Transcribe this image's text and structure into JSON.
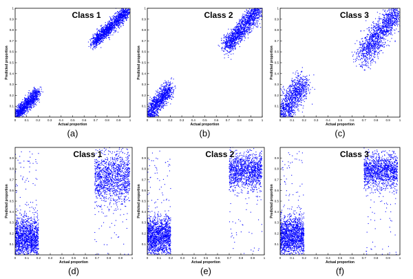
{
  "chart_data": [
    {
      "type": "scatter",
      "panel_label": "(a)",
      "title": "Class 1",
      "xlabel": "Actual proportion",
      "ylabel": "Predicted proportion",
      "xlim": [
        0,
        1
      ],
      "ylim": [
        0,
        1
      ],
      "grid": false,
      "x_ticks": [
        "0",
        "0.1",
        "0.2",
        "0.3",
        "0.4",
        "0.5",
        "0.6",
        "0.7",
        "0.8",
        "0.9",
        "1"
      ],
      "y_ticks": [
        "0.1",
        "0.2",
        "0.3",
        "0.4",
        "0.5",
        "0.6",
        "0.7",
        "0.8",
        "0.9",
        "1"
      ],
      "point_color": "#0000ff",
      "clusters": [
        {
          "x_range": [
            0,
            0.2
          ],
          "y_range": [
            0,
            0.23
          ],
          "trend": "diagonal",
          "spread": 0.03
        },
        {
          "x_range": [
            0.68,
            0.98
          ],
          "y_range": [
            0.68,
            0.98
          ],
          "trend": "diagonal",
          "spread": 0.03
        }
      ]
    },
    {
      "type": "scatter",
      "panel_label": "(b)",
      "title": "Class 2",
      "xlabel": "Actual proportion",
      "ylabel": "Predicted proportion",
      "xlim": [
        0,
        1
      ],
      "ylim": [
        0,
        1
      ],
      "grid": false,
      "x_ticks": [
        "0",
        "0.1",
        "0.2",
        "0.3",
        "0.4",
        "0.5",
        "0.6",
        "0.7",
        "0.8",
        "0.9",
        "1"
      ],
      "y_ticks": [
        "0.1",
        "0.2",
        "0.3",
        "0.4",
        "0.5",
        "0.6",
        "0.7",
        "0.8",
        "0.9",
        "1"
      ],
      "point_color": "#0000ff",
      "clusters": [
        {
          "x_range": [
            0,
            0.2
          ],
          "y_range": [
            0,
            0.28
          ],
          "trend": "diagonal",
          "spread": 0.04
        },
        {
          "x_range": [
            0.68,
            0.98
          ],
          "y_range": [
            0.64,
            1.0
          ],
          "trend": "diagonal",
          "spread": 0.045
        }
      ]
    },
    {
      "type": "scatter",
      "panel_label": "(c)",
      "title": "Class 3",
      "xlabel": "Actual proportion",
      "ylabel": "Predicted proportion",
      "xlim": [
        0,
        1
      ],
      "ylim": [
        0,
        1
      ],
      "grid": false,
      "x_ticks": [
        "0",
        "0.1",
        "0.2",
        "0.3",
        "0.4",
        "0.5",
        "0.6",
        "0.7",
        "0.8",
        "0.9",
        "1"
      ],
      "y_ticks": [
        "0.1",
        "0.2",
        "0.3",
        "0.4",
        "0.5",
        "0.6",
        "0.7",
        "0.8",
        "0.9",
        "1"
      ],
      "point_color": "#0000ff",
      "clusters": [
        {
          "x_range": [
            0,
            0.2
          ],
          "y_range": [
            0,
            0.32
          ],
          "trend": "diagonal",
          "spread": 0.06
        },
        {
          "x_range": [
            0.68,
            0.98
          ],
          "y_range": [
            0.55,
            0.98
          ],
          "trend": "diagonal",
          "spread": 0.06
        }
      ]
    },
    {
      "type": "scatter",
      "panel_label": "(d)",
      "title": "Class 1",
      "xlabel": "Actual proportion",
      "ylabel": "Predicted proportion",
      "xlim": [
        0,
        1
      ],
      "ylim": [
        0,
        1
      ],
      "grid": false,
      "x_ticks": [
        "0",
        "0.1",
        "0.2",
        "0.3",
        "0.4",
        "0.5",
        "0.6",
        "0.7",
        "0.8",
        "0.9",
        "1"
      ],
      "y_ticks": [
        "0.1",
        "0.2",
        "0.3",
        "0.4",
        "0.5",
        "0.6",
        "0.7",
        "0.8",
        "0.9"
      ],
      "point_color": "#0000ff",
      "clusters": [
        {
          "x_range": [
            0,
            0.2
          ],
          "y_range": [
            0,
            0.4
          ],
          "trend": "flat",
          "center_y": 0.15,
          "spread": 0.1
        },
        {
          "x_range": [
            0.68,
            0.98
          ],
          "y_range": [
            0.4,
            1.0
          ],
          "trend": "flat",
          "center_y": 0.72,
          "spread": 0.12
        }
      ]
    },
    {
      "type": "scatter",
      "panel_label": "(e)",
      "title": "Class 2",
      "xlabel": "Actual proportion",
      "ylabel": "Predicted proportion",
      "xlim": [
        0,
        1
      ],
      "ylim": [
        0,
        1
      ],
      "grid": false,
      "x_ticks": [
        "0",
        "0.1",
        "0.2",
        "0.3",
        "0.4",
        "0.5",
        "0.6",
        "0.7",
        "0.8",
        "0.9",
        "1"
      ],
      "y_ticks": [
        "0.1",
        "0.2",
        "0.3",
        "0.4",
        "0.5",
        "0.6",
        "0.7",
        "0.8",
        "0.9"
      ],
      "point_color": "#0000ff",
      "clusters": [
        {
          "x_range": [
            0,
            0.2
          ],
          "y_range": [
            0,
            0.4
          ],
          "trend": "flat",
          "center_y": 0.17,
          "spread": 0.09
        },
        {
          "x_range": [
            0.7,
            0.98
          ],
          "y_range": [
            0.6,
            1.0
          ],
          "trend": "flat",
          "center_y": 0.78,
          "spread": 0.08
        }
      ]
    },
    {
      "type": "scatter",
      "panel_label": "(f)",
      "title": "Class 3",
      "xlabel": "Actual proportion",
      "ylabel": "Predicted proportion",
      "xlim": [
        0,
        1
      ],
      "ylim": [
        0,
        1
      ],
      "grid": false,
      "x_ticks": [
        "0",
        "0.1",
        "0.2",
        "0.3",
        "0.4",
        "0.5",
        "0.6",
        "0.7",
        "0.8",
        "0.9",
        "1"
      ],
      "y_ticks": [
        "0.1",
        "0.2",
        "0.3",
        "0.4",
        "0.5",
        "0.6",
        "0.7",
        "0.8",
        "0.9"
      ],
      "point_color": "#0000ff",
      "clusters": [
        {
          "x_range": [
            0,
            0.2
          ],
          "y_range": [
            0,
            0.4
          ],
          "trend": "flat",
          "center_y": 0.17,
          "spread": 0.09
        },
        {
          "x_range": [
            0.7,
            0.98
          ],
          "y_range": [
            0.6,
            1.0
          ],
          "trend": "flat",
          "center_y": 0.78,
          "spread": 0.08
        }
      ]
    }
  ]
}
